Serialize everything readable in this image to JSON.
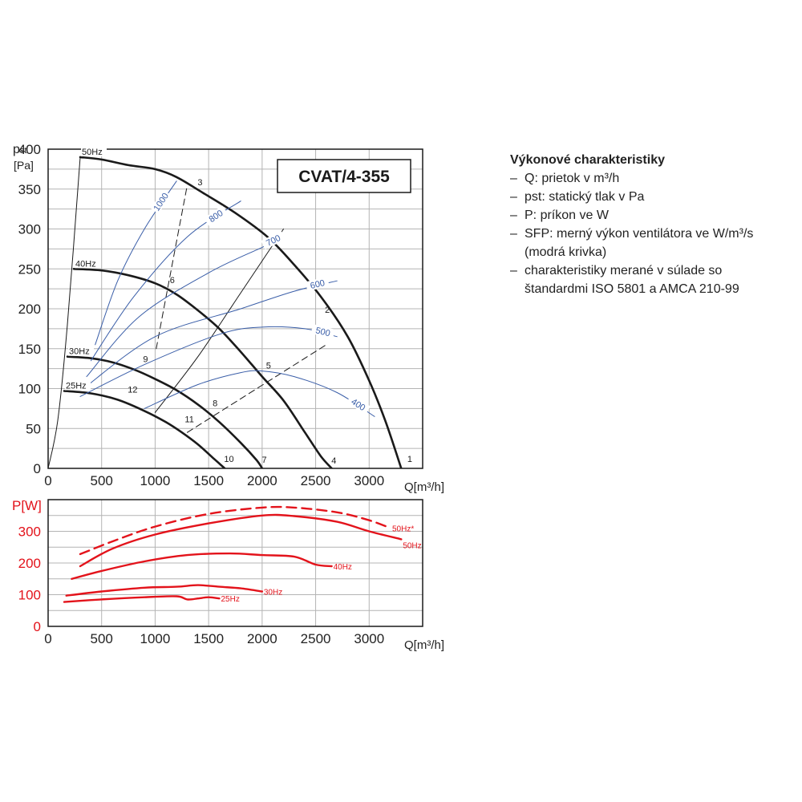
{
  "legend": {
    "title": "Výkonové charakteristiky",
    "items": [
      {
        "dash": "–",
        "text": "Q: prietok v m³/h"
      },
      {
        "dash": "–",
        "text": "pst: statický tlak v Pa"
      },
      {
        "dash": "–",
        "text": "P: príkon ve W"
      },
      {
        "dash": "–",
        "text": "SFP:  merný výkon ventilátora ve W/m³/s"
      },
      {
        "dash": "",
        "text": "(modrá krivka)"
      },
      {
        "dash": "–",
        "text": "charakteristiky merané v súlade so"
      },
      {
        "dash": "",
        "text": "štandardmi ISO 5801 a AMCA 210-99"
      }
    ]
  },
  "colors": {
    "fan_curve": "#1a1a1a",
    "sfp_curve": "#3a5ea8",
    "power_curve": "#e3131b",
    "grid": "#b4b4b4"
  },
  "chart_data": [
    {
      "type": "line",
      "title": "CVAT/4-355",
      "xlabel": "Q[m³/h]",
      "ylabel_main": "pst",
      "ylabel_unit": "[Pa]",
      "xlim": [
        0,
        3500
      ],
      "ylim": [
        0,
        400
      ],
      "xticks": [
        0,
        500,
        1000,
        1500,
        2000,
        2500,
        3000
      ],
      "yticks": [
        0,
        50,
        100,
        150,
        200,
        250,
        300,
        350,
        400
      ],
      "grid": true,
      "series": [
        {
          "name": "50Hz",
          "kind": "fan",
          "x": [
            300,
            500,
            750,
            1000,
            1200,
            1450,
            1750,
            2050,
            2300,
            2550,
            2800,
            3000,
            3150,
            3300
          ],
          "y": [
            390,
            387,
            380,
            375,
            365,
            345,
            320,
            290,
            255,
            215,
            165,
            110,
            60,
            0
          ]
        },
        {
          "name": "40Hz",
          "kind": "fan",
          "x": [
            240,
            500,
            750,
            1000,
            1200,
            1400,
            1600,
            1800,
            2000,
            2200,
            2400,
            2550,
            2650
          ],
          "y": [
            250,
            248,
            242,
            232,
            218,
            198,
            175,
            146,
            115,
            85,
            45,
            15,
            0
          ]
        },
        {
          "name": "30Hz",
          "kind": "fan",
          "x": [
            180,
            400,
            600,
            800,
            1000,
            1200,
            1400,
            1600,
            1800,
            1950,
            2000
          ],
          "y": [
            140,
            138,
            133,
            124,
            112,
            98,
            80,
            58,
            32,
            10,
            0
          ]
        },
        {
          "name": "25Hz",
          "kind": "fan",
          "x": [
            150,
            400,
            650,
            900,
            1100,
            1250,
            1400,
            1550,
            1650
          ],
          "y": [
            97,
            94,
            86,
            72,
            58,
            45,
            30,
            12,
            0
          ]
        },
        {
          "name": "",
          "kind": "fan",
          "x": [
            0,
            90,
            180,
            300
          ],
          "y": [
            0,
            60,
            180,
            390
          ]
        },
        {
          "name": "",
          "kind": "fan",
          "x": [
            1000,
            1400,
            1800,
            2200
          ],
          "y": [
            70,
            140,
            220,
            300
          ]
        },
        {
          "name": "",
          "kind": "dashed",
          "x": [
            1010,
            1300
          ],
          "y": [
            150,
            355
          ]
        },
        {
          "name": "",
          "kind": "dashed",
          "x": [
            1300,
            2600
          ],
          "y": [
            45,
            155
          ]
        },
        {
          "name": "1000",
          "kind": "sfp",
          "x": [
            440,
            650,
            900,
            1200
          ],
          "y": [
            155,
            235,
            300,
            360
          ]
        },
        {
          "name": "800",
          "kind": "sfp",
          "x": [
            400,
            800,
            1300,
            1800
          ],
          "y": [
            135,
            215,
            290,
            335
          ]
        },
        {
          "name": "700",
          "kind": "sfp",
          "x": [
            360,
            850,
            1500,
            2000,
            2200
          ],
          "y": [
            115,
            190,
            245,
            277,
            290
          ]
        },
        {
          "name": "600",
          "kind": "sfp",
          "x": [
            330,
            1000,
            1800,
            2300,
            2700
          ],
          "y": [
            100,
            165,
            200,
            222,
            235
          ]
        },
        {
          "name": "500",
          "kind": "sfp",
          "x": [
            300,
            900,
            1600,
            2000,
            2400,
            2700
          ],
          "y": [
            90,
            130,
            168,
            177,
            175,
            165
          ]
        },
        {
          "name": "400",
          "kind": "sfp",
          "x": [
            900,
            1400,
            1800,
            2000,
            2300,
            2700,
            3050
          ],
          "y": [
            75,
            105,
            120,
            122,
            115,
            95,
            65
          ]
        }
      ],
      "point_labels": [
        {
          "text": "1",
          "x": 3380,
          "y": 8
        },
        {
          "text": "2",
          "x": 2610,
          "y": 195
        },
        {
          "text": "3",
          "x": 1420,
          "y": 355
        },
        {
          "text": "4",
          "x": 2670,
          "y": 6
        },
        {
          "text": "5",
          "x": 2060,
          "y": 125
        },
        {
          "text": "6",
          "x": 1160,
          "y": 232
        },
        {
          "text": "7",
          "x": 2020,
          "y": 7
        },
        {
          "text": "8",
          "x": 1560,
          "y": 78
        },
        {
          "text": "9",
          "x": 910,
          "y": 133
        },
        {
          "text": "10",
          "x": 1690,
          "y": 8
        },
        {
          "text": "11",
          "x": 1320,
          "y": 58
        },
        {
          "text": "12",
          "x": 790,
          "y": 95
        }
      ]
    },
    {
      "type": "line",
      "xlabel": "Q[m³/h]",
      "ylabel": "P[W]",
      "xlim": [
        0,
        3500
      ],
      "ylim": [
        0,
        400
      ],
      "xticks": [
        0,
        500,
        1000,
        1500,
        2000,
        2500,
        3000
      ],
      "yticks": [
        0,
        100,
        200,
        300
      ],
      "grid": true,
      "series": [
        {
          "name": "50Hz*",
          "dashed": true,
          "x": [
            300,
            600,
            1000,
            1500,
            2000,
            2300,
            2700,
            3000,
            3200
          ],
          "y": [
            228,
            268,
            315,
            355,
            375,
            375,
            360,
            335,
            310
          ]
        },
        {
          "name": "50Hz",
          "dashed": false,
          "x": [
            300,
            600,
            1000,
            1500,
            2000,
            2300,
            2700,
            3000,
            3300
          ],
          "y": [
            190,
            245,
            290,
            325,
            350,
            348,
            330,
            300,
            275
          ]
        },
        {
          "name": "40Hz",
          "dashed": false,
          "x": [
            220,
            500,
            900,
            1300,
            1700,
            2000,
            2300,
            2500,
            2650
          ],
          "y": [
            150,
            175,
            205,
            225,
            230,
            225,
            220,
            195,
            190
          ]
        },
        {
          "name": "30Hz",
          "dashed": false,
          "x": [
            170,
            500,
            900,
            1200,
            1400,
            1600,
            1800,
            2000
          ],
          "y": [
            97,
            110,
            122,
            125,
            130,
            125,
            120,
            110
          ]
        },
        {
          "name": "25Hz",
          "dashed": false,
          "x": [
            150,
            500,
            900,
            1200,
            1300,
            1400,
            1500,
            1600
          ],
          "y": [
            77,
            85,
            92,
            95,
            85,
            88,
            92,
            88
          ]
        }
      ]
    }
  ]
}
